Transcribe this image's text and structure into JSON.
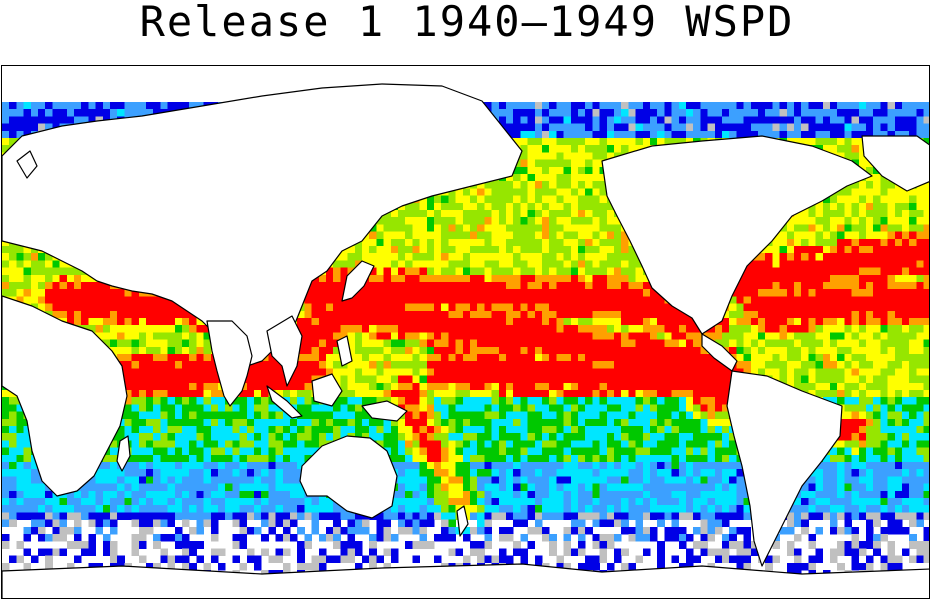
{
  "title": "Release 1 1940–1949 WSPD",
  "map": {
    "projection": "equirectangular",
    "center_longitude": 150,
    "variable": "WSPD",
    "period": "1940–1949",
    "palette": {
      "land": "#ffffff",
      "coastline": "#000000",
      "no_data": "#ffffff",
      "level_1": "#c0c0c0",
      "level_2": "#0000e6",
      "level_3": "#3ca0ff",
      "level_4": "#00e6ff",
      "level_5": "#00c800",
      "level_6": "#96e600",
      "level_7": "#ffff00",
      "level_8": "#ffa000",
      "level_9": "#ff0000"
    }
  }
}
